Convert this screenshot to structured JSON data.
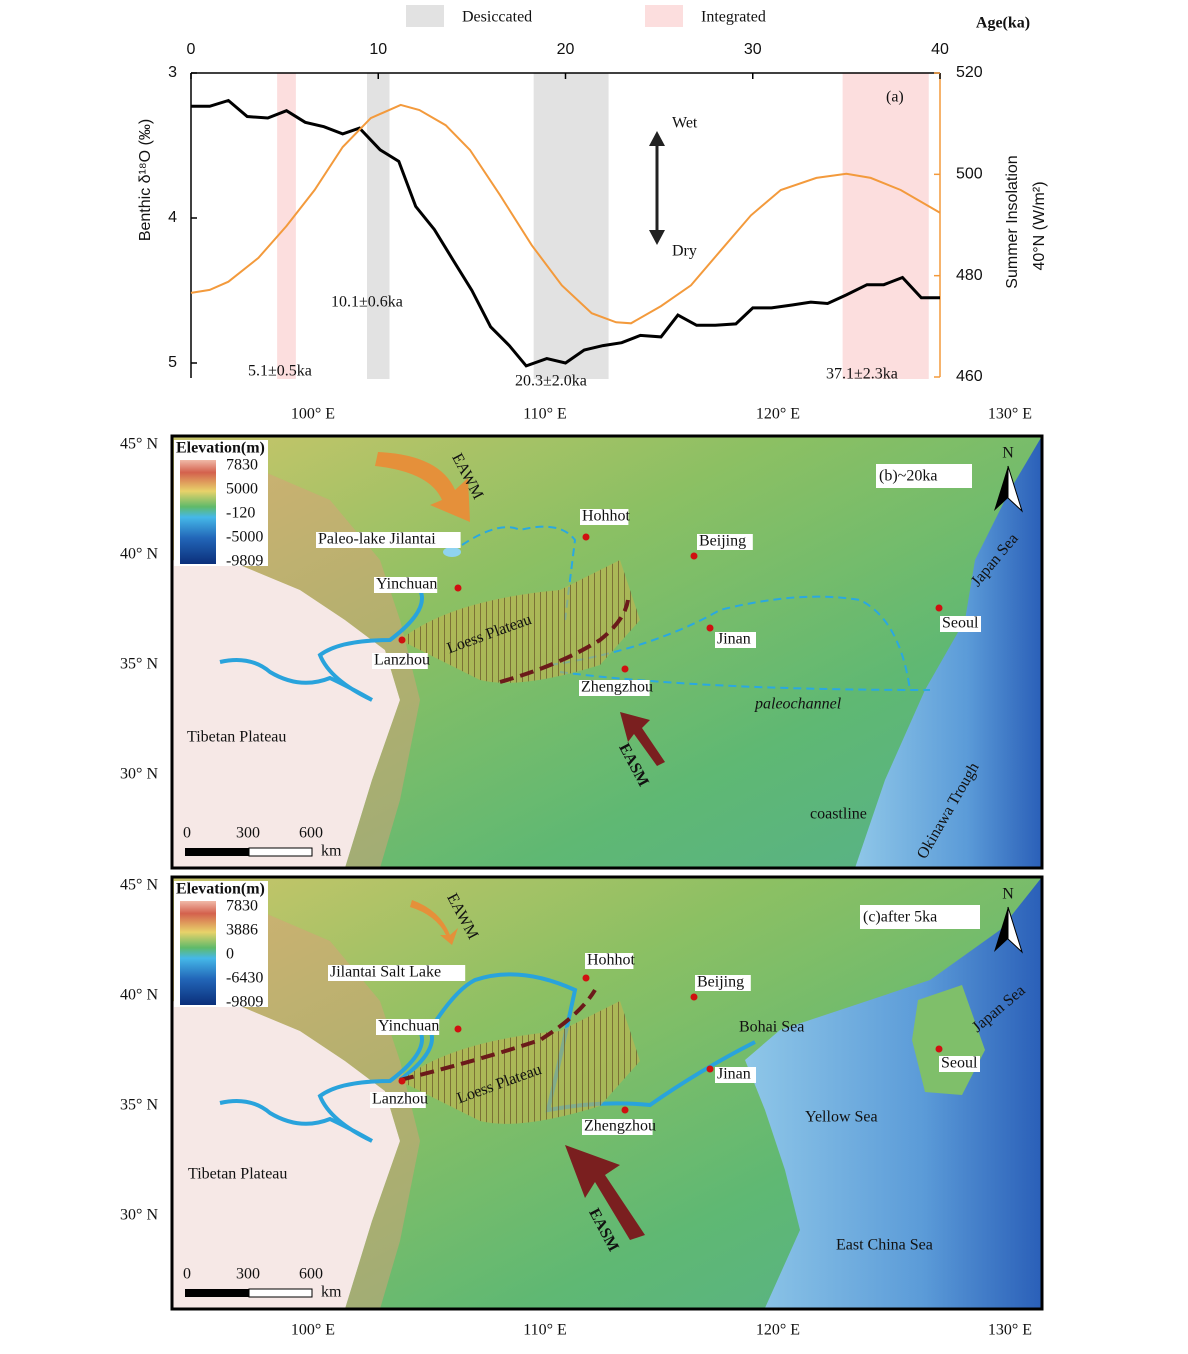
{
  "chart_data": {
    "type": "line",
    "panel_label": "(a)",
    "xlabel": "Age(ka)",
    "ylabel": "Benthic δ¹⁸O (‰)",
    "y2label": [
      "Summer Insolation",
      "40°N  (W/m²)"
    ],
    "xlim": [
      0,
      40
    ],
    "xticks": [
      0,
      10,
      20,
      30,
      40
    ],
    "ylim": [
      3,
      5
    ],
    "y_inverted": true,
    "yticks": [
      3,
      4,
      5
    ],
    "y2lim": [
      460,
      520
    ],
    "y2ticks": [
      460,
      480,
      500,
      520
    ],
    "y2color": "#f39a3c",
    "bands": [
      {
        "name": "Desiccated",
        "color": "#e2e2e2",
        "ranges": [
          [
            9.4,
            10.6
          ],
          [
            18.3,
            22.3
          ]
        ]
      },
      {
        "name": "Integrated",
        "color": "#fcdede",
        "ranges": [
          [
            4.6,
            5.6
          ],
          [
            34.8,
            39.4
          ]
        ]
      }
    ],
    "series": [
      {
        "name": "Benthic δ18O",
        "color": "#000000",
        "x": [
          0,
          1.0,
          2.0,
          3.0,
          4.1,
          5.1,
          6.1,
          7.1,
          8.1,
          9.0,
          10.1,
          11.1,
          12.0,
          13.0,
          14.0,
          15.0,
          16.0,
          17.0,
          17.9,
          19.0,
          20.0,
          21.0,
          22.0,
          23.0,
          24.0,
          25.1,
          26.0,
          27.0,
          28.0,
          29.1,
          30.0,
          31.0,
          32.1,
          33.1,
          34.0,
          35.0,
          36.1,
          37.0,
          38.0,
          39.0,
          40
        ],
        "values": [
          3.23,
          3.23,
          3.19,
          3.3,
          3.31,
          3.26,
          3.34,
          3.37,
          3.42,
          3.38,
          3.53,
          3.61,
          3.92,
          4.08,
          4.29,
          4.5,
          4.75,
          4.88,
          5.02,
          4.97,
          5.0,
          4.91,
          4.88,
          4.86,
          4.81,
          4.82,
          4.67,
          4.74,
          4.74,
          4.73,
          4.62,
          4.62,
          4.6,
          4.58,
          4.59,
          4.53,
          4.46,
          4.46,
          4.41,
          4.55,
          4.55
        ]
      },
      {
        "name": "Summer Insolation",
        "color": "#f39a3c",
        "axis": "y2",
        "x": [
          0,
          1.0,
          2.0,
          3.6,
          5.1,
          6.6,
          8.1,
          9.6,
          11.2,
          12.2,
          13.6,
          14.9,
          16.5,
          18.2,
          19.8,
          21.4,
          22.7,
          23.5,
          25.1,
          26.7,
          28.3,
          29.9,
          31.5,
          33.4,
          35.0,
          36.3,
          37.9,
          40
        ],
        "values": [
          476.6,
          477.2,
          478.8,
          483.5,
          489.8,
          496.9,
          505.4,
          511.1,
          513.7,
          512.7,
          509.7,
          504.8,
          495.9,
          486.0,
          478.1,
          472.6,
          470.8,
          470.6,
          474.0,
          478.1,
          485.0,
          491.9,
          496.9,
          499.3,
          500.1,
          499.3,
          496.9,
          492.4
        ]
      }
    ],
    "annotations": [
      "5.1±0.5ka",
      "10.1±0.6ka",
      "20.3±2.0ka",
      "37.1±2.3ka",
      "Wet",
      "Dry"
    ]
  },
  "maps": {
    "lon_labels": [
      "100° E",
      "110° E",
      "120° E",
      "130° E"
    ],
    "lat_labels": [
      "45° N",
      "40° N",
      "35° N",
      "30° N"
    ],
    "panels": [
      {
        "label": "(b)~20ka",
        "legend_title": "Elevation(m)",
        "legend_ticks": [
          "7830",
          "5000",
          "-120",
          "-5000",
          "-9809"
        ],
        "scale": [
          "0",
          "300",
          "600",
          "km"
        ],
        "north": "N",
        "places": [
          "Paleo-lake Jilantai",
          "Hohhot",
          "Beijing",
          "Yinchuan",
          "Loess Plateau",
          "Lanzhou",
          "Jinan",
          "Zhengzhou",
          "paleochannel",
          "Seoul",
          "Japan Sea",
          "Tibetan Plateau",
          "coastline",
          "Okinawa Trough",
          "EAWM",
          "EASM"
        ]
      },
      {
        "label": "(c)after 5ka",
        "legend_title": "Elevation(m)",
        "legend_ticks": [
          "7830",
          "3886",
          "0",
          "-6430",
          "-9809"
        ],
        "scale": [
          "0",
          "300",
          "600",
          "km"
        ],
        "north": "N",
        "places": [
          "Jilantai Salt Lake",
          "Hohhot",
          "Beijing",
          "Yinchuan",
          "Bohai Sea",
          "Loess Plateau",
          "Lanzhou",
          "Jinan",
          "Zhengzhou",
          "Seoul",
          "Japan Sea",
          "Yellow Sea",
          "Tibetan Plateau",
          "East China Sea",
          "EAWM",
          "EASM"
        ]
      }
    ]
  }
}
